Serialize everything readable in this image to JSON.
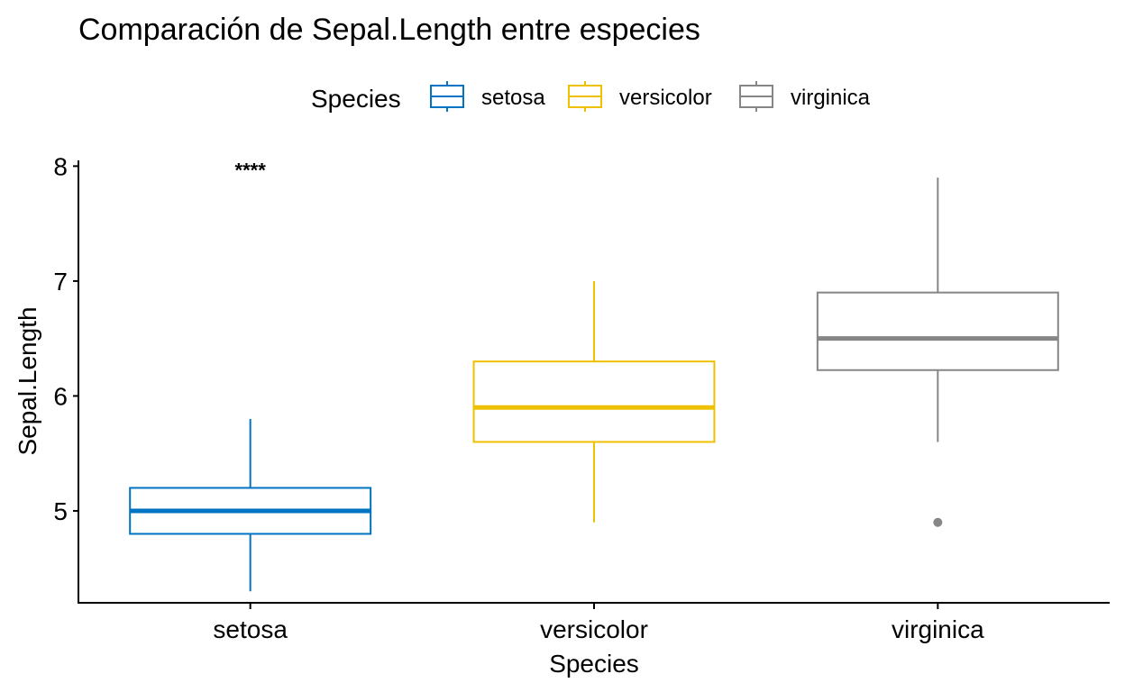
{
  "chart_data": {
    "type": "boxplot",
    "title": "Comparación de Sepal.Length entre especies",
    "xlabel": "Species",
    "ylabel": "Sepal.Length",
    "legend_title": "Species",
    "legend_position": "top",
    "grid": false,
    "ylim": [
      4.2,
      8.05
    ],
    "yticks": [
      5,
      6,
      7,
      8
    ],
    "categories": [
      "setosa",
      "versicolor",
      "virginica"
    ],
    "series": [
      {
        "name": "setosa",
        "color": "#0073C2",
        "whisker_low": 4.3,
        "q1": 4.8,
        "median": 5.0,
        "q3": 5.2,
        "whisker_high": 5.8,
        "outliers": []
      },
      {
        "name": "versicolor",
        "color": "#EFC000",
        "whisker_low": 4.9,
        "q1": 5.6,
        "median": 5.9,
        "q3": 6.3,
        "whisker_high": 7.0,
        "outliers": []
      },
      {
        "name": "virginica",
        "color": "#868686",
        "whisker_low": 5.6,
        "q1": 6.225,
        "median": 6.5,
        "q3": 6.9,
        "whisker_high": 7.9,
        "outliers": [
          4.9
        ]
      }
    ],
    "annotations": [
      {
        "text": "****",
        "category": "setosa",
        "y": 8.0
      }
    ]
  }
}
